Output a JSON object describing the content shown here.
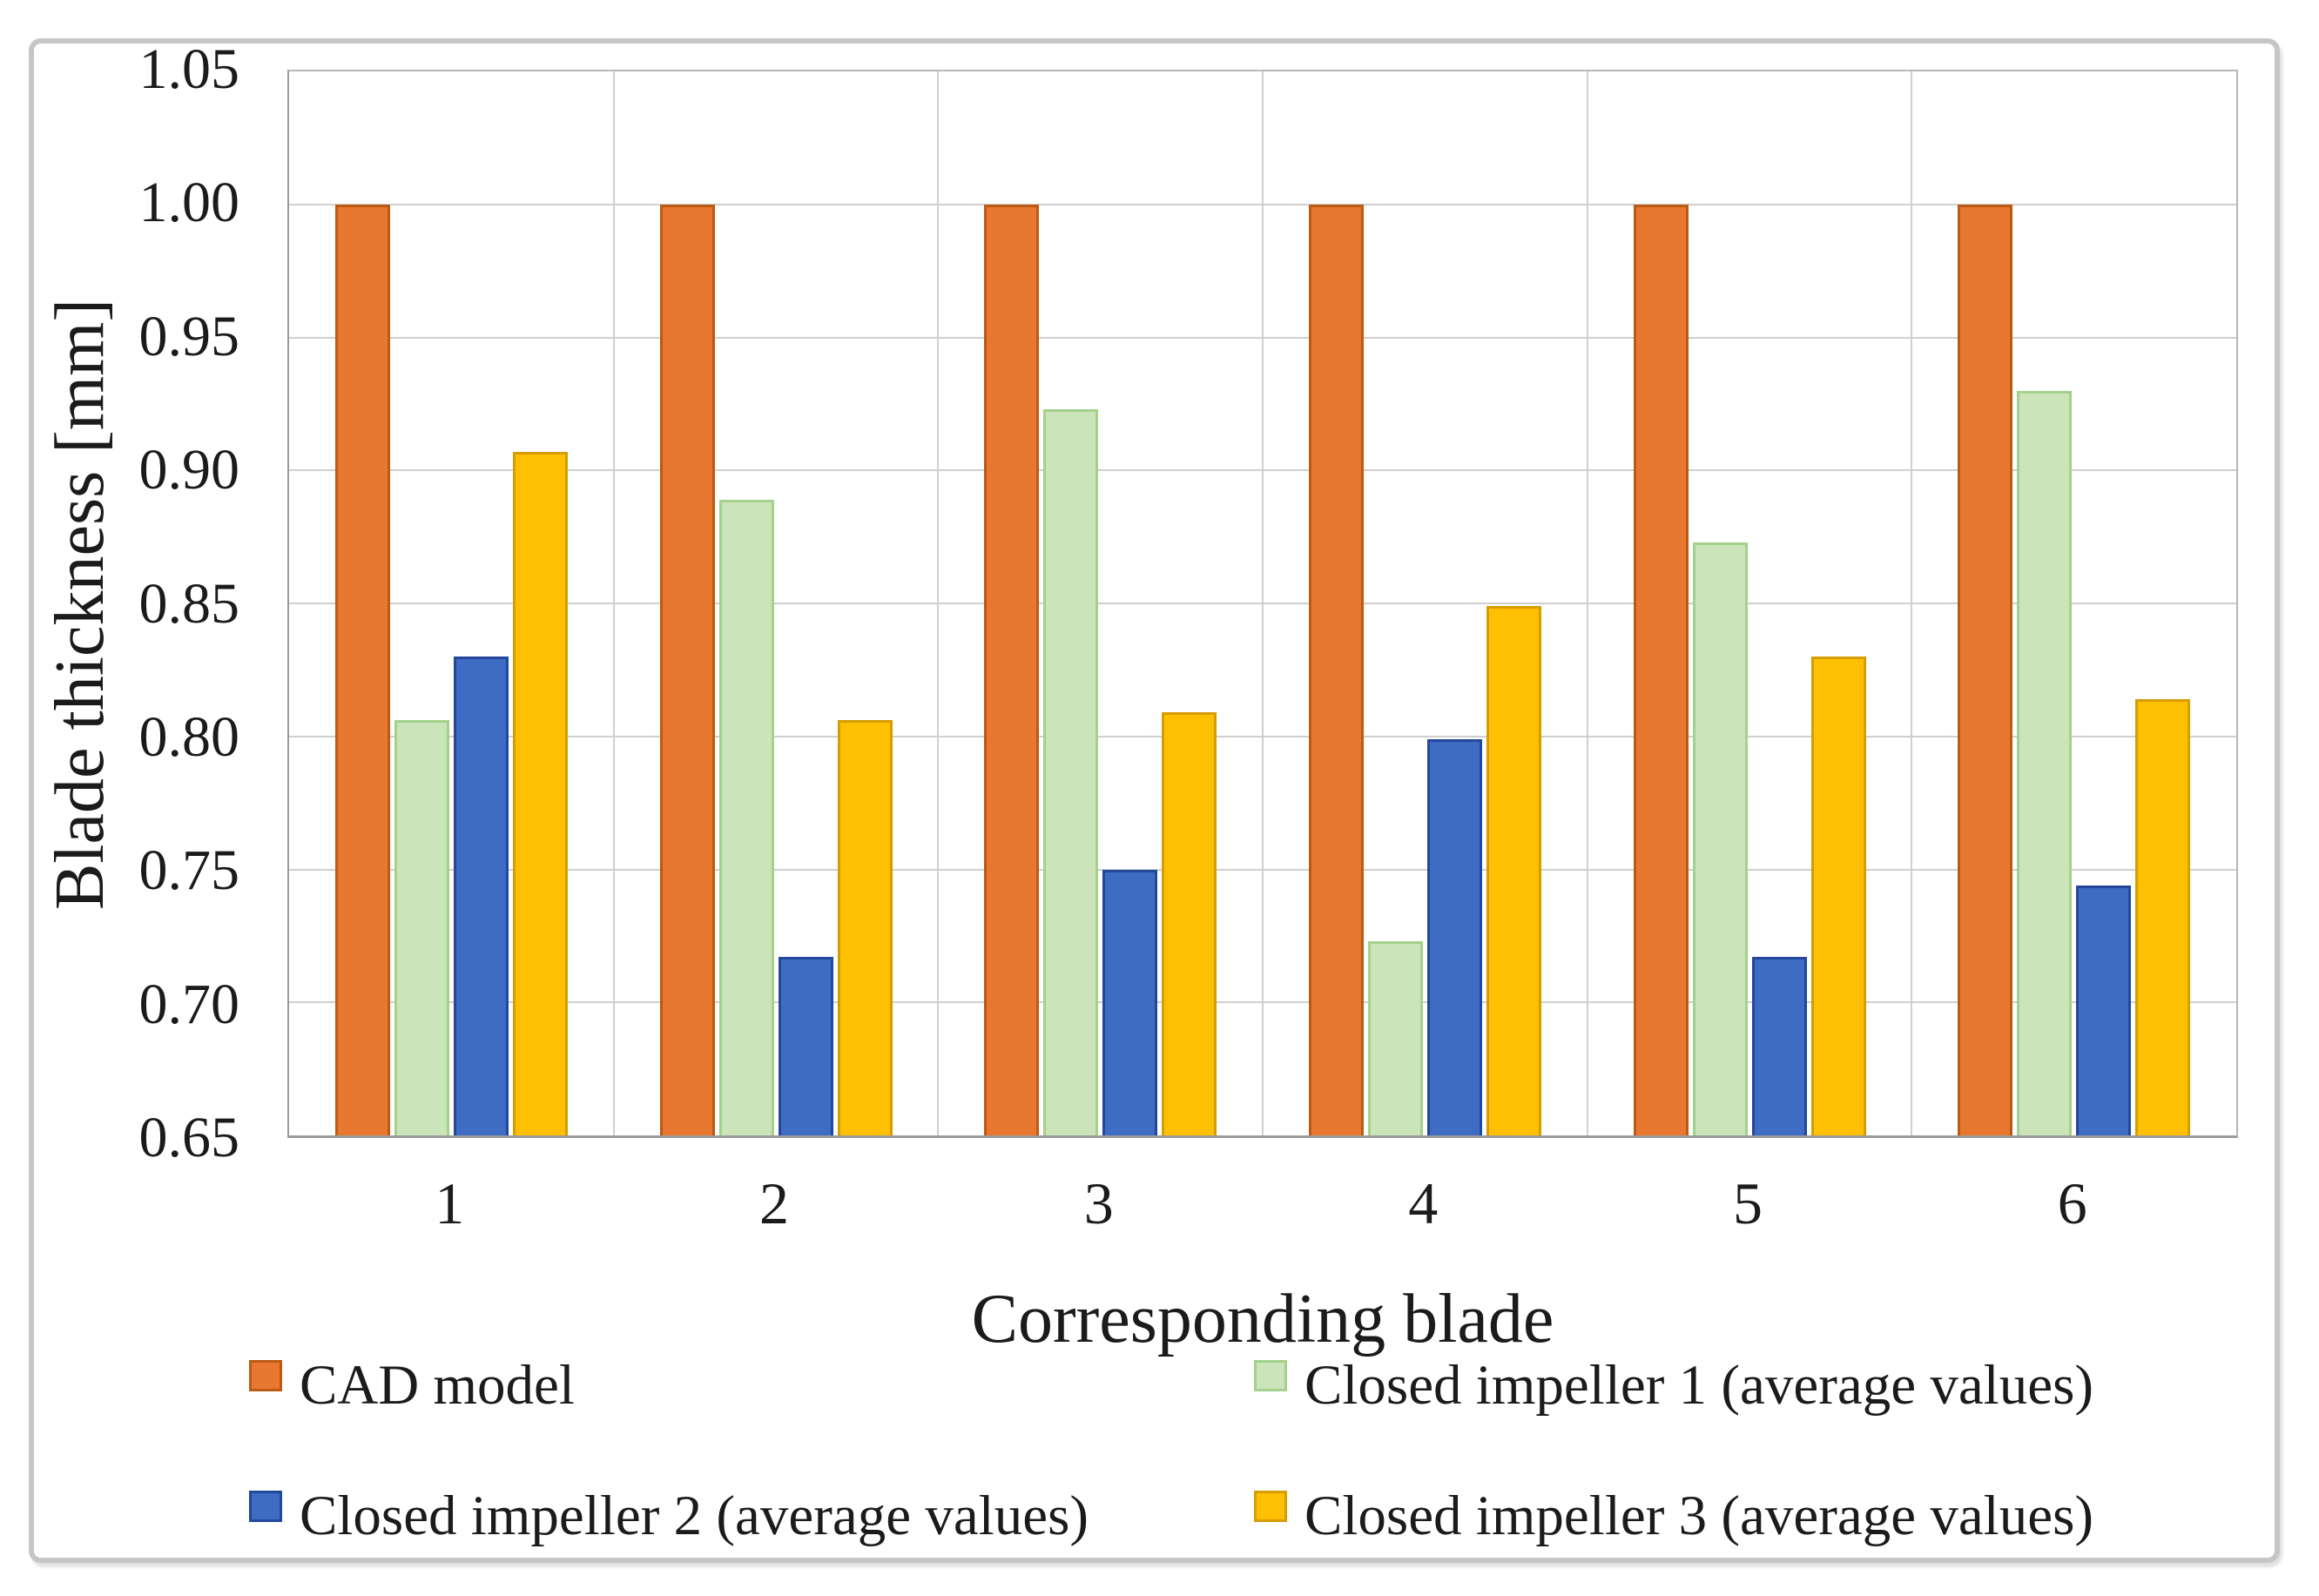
{
  "chart_data": {
    "type": "bar",
    "title": "",
    "xlabel": "Corresponding blade",
    "ylabel": "Blade thickness [mm]",
    "categories": [
      "1",
      "2",
      "3",
      "4",
      "5",
      "6"
    ],
    "series": [
      {
        "name": "CAD model",
        "color": "#E8782F",
        "border_color": "#BC5A15",
        "values": [
          1.0,
          1.0,
          1.0,
          1.0,
          1.0,
          1.0
        ]
      },
      {
        "name": "Closed impeller 1 (average values)",
        "color": "#CCE4BA",
        "border_color": "#A4D18C",
        "values": [
          0.806,
          0.889,
          0.923,
          0.723,
          0.873,
          0.93
        ]
      },
      {
        "name": "Closed impeller 2 (average values)",
        "color": "#3E6CC3",
        "border_color": "#23489B",
        "values": [
          0.83,
          0.717,
          0.75,
          0.799,
          0.717,
          0.744
        ]
      },
      {
        "name": "Closed impeller 3 (average values)",
        "color": "#FFC003",
        "border_color": "#D69D00",
        "values": [
          0.907,
          0.806,
          0.809,
          0.849,
          0.83,
          0.814
        ]
      }
    ],
    "ylim": [
      0.65,
      1.05
    ],
    "ytick_step": 0.05,
    "ytick_labels": [
      "1.05",
      "1.00",
      "0.95",
      "0.90",
      "0.85",
      "0.80",
      "0.75",
      "0.70",
      "0.65"
    ],
    "grid": true,
    "legend_position": "bottom-two-columns"
  },
  "style_colors": {
    "gridline": "#cfcfcf",
    "plot_border": "#b7b7b7",
    "axis_line": "#9b9b9b",
    "outer_frame": "#c6c6c6",
    "text": "#1b1b1b",
    "background": "#ffffff"
  }
}
